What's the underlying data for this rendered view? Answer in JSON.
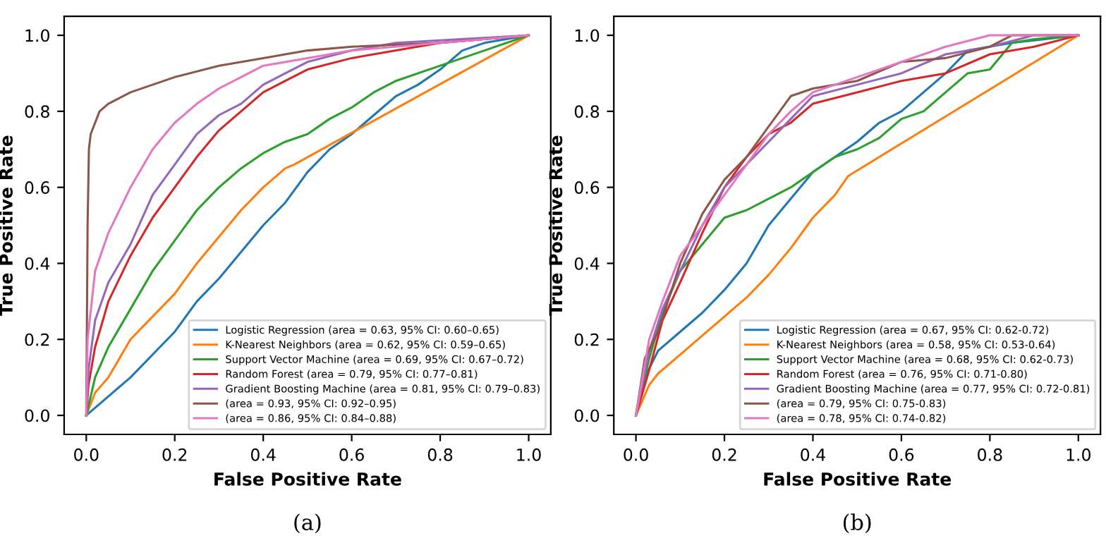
{
  "chart_data": [
    {
      "type": "line",
      "xlabel": "False Positive Rate",
      "ylabel": "True Positive Rate",
      "annotations": [
        "(a)"
      ],
      "legend": "bottom right",
      "grid": false,
      "xlim": [
        -0.05,
        1.05
      ],
      "ylim": [
        -0.05,
        1.05
      ],
      "xticks": [
        {
          "value": 0,
          "label": "0.0"
        },
        {
          "value": 0.2,
          "label": "0.2"
        },
        {
          "value": 0.4,
          "label": "0.4"
        },
        {
          "value": 0.6,
          "label": "0.6"
        },
        {
          "value": 0.8,
          "label": "0.8"
        },
        {
          "value": 1,
          "label": "1.0"
        }
      ],
      "yticks": [
        {
          "value": 0,
          "label": "0.0"
        },
        {
          "value": 0.2,
          "label": "0.2"
        },
        {
          "value": 0.4,
          "label": "0.4"
        },
        {
          "value": 0.6,
          "label": "0.6"
        },
        {
          "value": 0.8,
          "label": "0.8"
        },
        {
          "value": 1,
          "label": "1.0"
        }
      ],
      "series": [
        {
          "name": "Logistic Regression (area = 0.63, 95% CI: 0.60–0.65)",
          "color": "#1f77b4",
          "x": [
            0,
            0.01,
            0.05,
            0.1,
            0.15,
            0.2,
            0.25,
            0.3,
            0.35,
            0.4,
            0.45,
            0.5,
            0.55,
            0.6,
            0.65,
            0.7,
            0.75,
            0.8,
            0.85,
            0.9,
            1
          ],
          "values": [
            0,
            0.01,
            0.05,
            0.1,
            0.16,
            0.22,
            0.3,
            0.36,
            0.43,
            0.5,
            0.56,
            0.64,
            0.7,
            0.74,
            0.79,
            0.84,
            0.87,
            0.91,
            0.96,
            0.98,
            1
          ]
        },
        {
          "name": "K-Nearest Neighbors (area = 0.62, 95% CI: 0.59–0.65)",
          "color": "#ff7f0e",
          "x": [
            0,
            0.02,
            0.05,
            0.1,
            0.15,
            0.2,
            0.25,
            0.3,
            0.35,
            0.4,
            0.45,
            0.47,
            1
          ],
          "values": [
            0,
            0.06,
            0.1,
            0.2,
            0.26,
            0.32,
            0.4,
            0.47,
            0.54,
            0.6,
            0.65,
            0.66,
            1
          ]
        },
        {
          "name": "Support Vector Machine (area = 0.69, 95% CI: 0.67–0.72)",
          "color": "#2ca02c",
          "x": [
            0,
            0.02,
            0.05,
            0.1,
            0.15,
            0.2,
            0.25,
            0.3,
            0.35,
            0.4,
            0.45,
            0.5,
            0.55,
            0.6,
            0.65,
            0.7,
            0.8,
            0.9,
            1
          ],
          "values": [
            0,
            0.1,
            0.18,
            0.28,
            0.38,
            0.46,
            0.54,
            0.6,
            0.65,
            0.69,
            0.72,
            0.74,
            0.78,
            0.81,
            0.85,
            0.88,
            0.92,
            0.96,
            1
          ]
        },
        {
          "name": "Random Forest (area = 0.79, 95% CI: 0.77–0.81)",
          "color": "#d62728",
          "x": [
            0,
            0.005,
            0.02,
            0.05,
            0.1,
            0.15,
            0.2,
            0.25,
            0.3,
            0.35,
            0.4,
            0.45,
            0.5,
            0.6,
            0.7,
            0.8,
            1
          ],
          "values": [
            0,
            0.08,
            0.18,
            0.3,
            0.42,
            0.52,
            0.6,
            0.68,
            0.75,
            0.8,
            0.85,
            0.88,
            0.91,
            0.94,
            0.96,
            0.98,
            1
          ]
        },
        {
          "name": "Gradient Boosting Machine (area = 0.81, 95% CI: 0.79–0.83)",
          "color": "#9467bd",
          "x": [
            0,
            0.005,
            0.02,
            0.05,
            0.1,
            0.15,
            0.2,
            0.25,
            0.3,
            0.35,
            0.4,
            0.45,
            0.5,
            0.6,
            0.7,
            1
          ],
          "values": [
            0,
            0.12,
            0.25,
            0.35,
            0.45,
            0.58,
            0.66,
            0.74,
            0.79,
            0.82,
            0.87,
            0.9,
            0.93,
            0.96,
            0.98,
            1
          ]
        },
        {
          "name": "(area = 0.93, 95% CI: 0.92–0.95)",
          "color": "#8c564b",
          "x": [
            0,
            0.003,
            0.006,
            0.01,
            0.03,
            0.05,
            0.1,
            0.15,
            0.2,
            0.3,
            0.4,
            0.5,
            0.6,
            0.8,
            1
          ],
          "values": [
            0,
            0.5,
            0.7,
            0.74,
            0.8,
            0.82,
            0.85,
            0.87,
            0.89,
            0.92,
            0.94,
            0.96,
            0.97,
            0.98,
            1
          ]
        },
        {
          "name": "(area = 0.86, 95% CI: 0.84–0.88)",
          "color": "#e377c2",
          "x": [
            0,
            0.003,
            0.02,
            0.05,
            0.1,
            0.15,
            0.2,
            0.25,
            0.3,
            0.35,
            0.4,
            0.5,
            0.6,
            0.8,
            1
          ],
          "values": [
            0,
            0.2,
            0.38,
            0.48,
            0.6,
            0.7,
            0.77,
            0.82,
            0.86,
            0.89,
            0.92,
            0.94,
            0.96,
            0.98,
            1
          ]
        }
      ]
    },
    {
      "type": "line",
      "xlabel": "False Positive Rate",
      "ylabel": "True Positive Rate",
      "annotations": [
        "(b)"
      ],
      "legend": "bottom right",
      "grid": false,
      "xlim": [
        -0.05,
        1.05
      ],
      "ylim": [
        -0.05,
        1.05
      ],
      "xticks": [
        {
          "value": 0,
          "label": "0.0"
        },
        {
          "value": 0.2,
          "label": "0.2"
        },
        {
          "value": 0.4,
          "label": "0.4"
        },
        {
          "value": 0.6,
          "label": "0.6"
        },
        {
          "value": 0.8,
          "label": "0.8"
        },
        {
          "value": 1,
          "label": "1.0"
        }
      ],
      "yticks": [
        {
          "value": 0,
          "label": "0.0"
        },
        {
          "value": 0.2,
          "label": "0.2"
        },
        {
          "value": 0.4,
          "label": "0.4"
        },
        {
          "value": 0.6,
          "label": "0.6"
        },
        {
          "value": 0.8,
          "label": "0.8"
        },
        {
          "value": 1,
          "label": "1.0"
        }
      ],
      "series": [
        {
          "name": "Logistic Regression (area = 0.67, 95% CI: 0.62-0.72)",
          "color": "#1f77b4",
          "x": [
            0,
            0.02,
            0.05,
            0.1,
            0.15,
            0.2,
            0.25,
            0.3,
            0.35,
            0.4,
            0.45,
            0.5,
            0.55,
            0.6,
            0.65,
            0.7,
            0.75,
            0.85,
            1
          ],
          "values": [
            0,
            0.1,
            0.17,
            0.22,
            0.27,
            0.33,
            0.4,
            0.5,
            0.57,
            0.64,
            0.68,
            0.72,
            0.77,
            0.8,
            0.85,
            0.9,
            0.96,
            0.98,
            1
          ]
        },
        {
          "name": "K-Nearest Neighbors (area = 0.58, 95% CI: 0.53-0.64)",
          "color": "#ff7f0e",
          "x": [
            0,
            0.03,
            0.05,
            0.1,
            0.15,
            0.2,
            0.25,
            0.3,
            0.35,
            0.4,
            0.45,
            0.48,
            1
          ],
          "values": [
            0,
            0.08,
            0.11,
            0.16,
            0.21,
            0.26,
            0.31,
            0.37,
            0.44,
            0.52,
            0.58,
            0.63,
            1
          ]
        },
        {
          "name": "Support Vector Machine (area = 0.68, 95% CI: 0.62-0.73)",
          "color": "#2ca02c",
          "x": [
            0,
            0.03,
            0.06,
            0.1,
            0.15,
            0.2,
            0.25,
            0.3,
            0.35,
            0.4,
            0.45,
            0.5,
            0.55,
            0.6,
            0.65,
            0.7,
            0.75,
            0.8,
            0.85,
            0.9,
            1
          ],
          "values": [
            0,
            0.15,
            0.27,
            0.38,
            0.45,
            0.52,
            0.54,
            0.57,
            0.6,
            0.64,
            0.68,
            0.7,
            0.73,
            0.78,
            0.8,
            0.85,
            0.9,
            0.91,
            0.98,
            0.99,
            1
          ]
        },
        {
          "name": "Random Forest (area = 0.76, 95% CI: 0.71-0.80)",
          "color": "#d62728",
          "x": [
            0,
            0.03,
            0.06,
            0.1,
            0.15,
            0.2,
            0.25,
            0.3,
            0.35,
            0.4,
            0.5,
            0.6,
            0.7,
            0.8,
            0.9,
            1
          ],
          "values": [
            0,
            0.12,
            0.25,
            0.35,
            0.48,
            0.6,
            0.68,
            0.74,
            0.77,
            0.82,
            0.85,
            0.88,
            0.9,
            0.95,
            0.97,
            1
          ]
        },
        {
          "name": "Gradient Boosting Machine (area = 0.77, 95% CI: 0.72-0.81)",
          "color": "#9467bd",
          "x": [
            0,
            0.03,
            0.06,
            0.1,
            0.15,
            0.2,
            0.25,
            0.3,
            0.35,
            0.4,
            0.5,
            0.6,
            0.7,
            0.8,
            0.9,
            1
          ],
          "values": [
            0,
            0.17,
            0.28,
            0.38,
            0.5,
            0.6,
            0.66,
            0.72,
            0.78,
            0.84,
            0.87,
            0.9,
            0.95,
            0.97,
            1,
            1
          ]
        },
        {
          "name": "(area = 0.79, 95% CI: 0.75-0.83)",
          "color": "#8c564b",
          "x": [
            0,
            0.02,
            0.05,
            0.1,
            0.15,
            0.2,
            0.25,
            0.3,
            0.35,
            0.4,
            0.5,
            0.6,
            0.7,
            0.8,
            0.85,
            1
          ],
          "values": [
            0,
            0.15,
            0.22,
            0.4,
            0.53,
            0.62,
            0.68,
            0.76,
            0.84,
            0.86,
            0.88,
            0.93,
            0.94,
            0.97,
            1,
            1
          ]
        },
        {
          "name": "(area = 0.78, 95% CI: 0.74-0.82)",
          "color": "#e377c2",
          "x": [
            0,
            0.03,
            0.06,
            0.1,
            0.15,
            0.2,
            0.25,
            0.3,
            0.35,
            0.4,
            0.5,
            0.6,
            0.7,
            0.8,
            1
          ],
          "values": [
            0,
            0.2,
            0.3,
            0.42,
            0.5,
            0.58,
            0.66,
            0.74,
            0.8,
            0.85,
            0.89,
            0.93,
            0.97,
            1,
            1
          ]
        }
      ]
    }
  ]
}
